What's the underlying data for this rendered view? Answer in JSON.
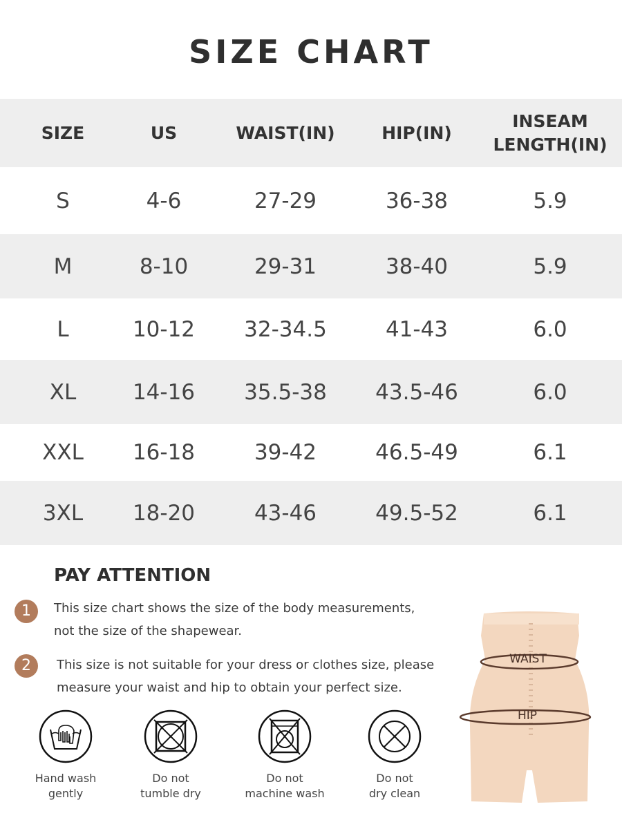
{
  "title": "SIZE CHART",
  "table": {
    "headers": [
      "SIZE",
      "US",
      "WAIST(IN)",
      "HIP(IN)",
      "INSEAM LENGTH(IN)"
    ],
    "rows": [
      [
        "S",
        "4-6",
        "27-29",
        "36-38",
        "5.9"
      ],
      [
        "M",
        "8-10",
        "29-31",
        "38-40",
        "5.9"
      ],
      [
        "L",
        "10-12",
        "32-34.5",
        "41-43",
        "6.0"
      ],
      [
        "XL",
        "14-16",
        "35.5-38",
        "43.5-46",
        "6.0"
      ],
      [
        "XXL",
        "16-18",
        "39-42",
        "46.5-49",
        "6.1"
      ],
      [
        "3XL",
        "18-20",
        "43-46",
        "49.5-52",
        "6.1"
      ]
    ]
  },
  "attention": {
    "heading": "PAY ATTENTION",
    "notes": [
      {
        "num": "1",
        "line1": "This size chart shows the size of the body measurements,",
        "line2": "not the size of the shapewear."
      },
      {
        "num": "2",
        "line1": "This size is not suitable for your dress or clothes size, please",
        "line2": "measure your waist and hip to obtain your perfect size."
      }
    ]
  },
  "care": [
    {
      "icon": "hand-wash-icon",
      "line1": "Hand wash",
      "line2": "gently"
    },
    {
      "icon": "no-tumble-dry-icon",
      "line1": "Do not",
      "line2": "tumble dry"
    },
    {
      "icon": "no-machine-wash-icon",
      "line1": "Do not",
      "line2": "machine wash"
    },
    {
      "icon": "no-dry-clean-icon",
      "line1": "Do not",
      "line2": "dry clean"
    }
  ],
  "figure": {
    "waist_label": "WAIST",
    "hip_label": "HIP"
  },
  "colors": {
    "accent": "#b27c5c",
    "band": "#eeeeee",
    "garment": "#f3d7bf",
    "measure_line": "#5a3a2c"
  }
}
